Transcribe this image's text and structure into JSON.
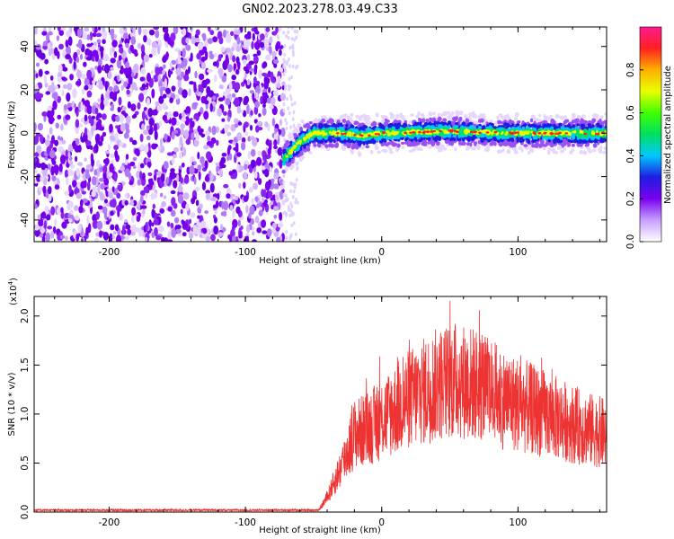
{
  "title": "GN02.2023.278.03.49.C33",
  "colors": {
    "snr_line": "#ee3333",
    "noise_dot": "#7a00ee",
    "frame": "#000000"
  },
  "chart_data": [
    {
      "type": "heatmap",
      "xlabel": "Height of straight line (km)",
      "ylabel": "Frequency (Hz)",
      "xlim": [
        -255,
        165
      ],
      "ylim": [
        -50,
        49
      ],
      "x_ticks": [
        -200,
        -100,
        0,
        100
      ],
      "x_tick_labels": [
        "-200",
        "-100",
        "0",
        "100"
      ],
      "y_ticks": [
        -40,
        -20,
        0,
        20,
        40
      ],
      "y_tick_labels": [
        "-40",
        "-20",
        "0",
        "20",
        "40"
      ],
      "noise_region_end_km": -72,
      "signal_track": [
        {
          "x": -72,
          "f": -12
        },
        {
          "x": -60,
          "f": -4
        },
        {
          "x": -50,
          "f": 0
        },
        {
          "x": -30,
          "f": 0
        },
        {
          "x": -15,
          "f": -1
        },
        {
          "x": 0,
          "f": 0
        },
        {
          "x": 50,
          "f": 1
        },
        {
          "x": 100,
          "f": 0
        },
        {
          "x": 165,
          "f": 0
        }
      ],
      "colorbar": {
        "label": "Normalized spectral amplitude",
        "range": [
          0.0,
          1.0
        ],
        "ticks": [
          0.0,
          0.2,
          0.4,
          0.6,
          0.8
        ],
        "tick_labels": [
          "0.0",
          "0.2",
          "0.4",
          "0.6",
          "0.8"
        ],
        "colors": [
          "#ffffff",
          "#c7a0ff",
          "#7a00ee",
          "#1d1de0",
          "#00c8ff",
          "#00e060",
          "#40ff00",
          "#e8ff00",
          "#ffb000",
          "#ff2020",
          "#ff1a90"
        ]
      }
    },
    {
      "type": "line",
      "xlabel": "Height of straight line (km)",
      "ylabel": "SNR (10 * v/v)",
      "multiplier_label": "(x10",
      "multiplier_exp": "4",
      "multiplier_close": ")",
      "xlim": [
        -255,
        165
      ],
      "ylim": [
        0,
        2.2
      ],
      "x_ticks": [
        -200,
        -100,
        0,
        100
      ],
      "x_tick_labels": [
        "-200",
        "-100",
        "0",
        "100"
      ],
      "y_ticks": [
        0.0,
        0.5,
        1.0,
        1.5,
        2.0
      ],
      "y_tick_labels": [
        "0.0",
        "0.5",
        "1.0",
        "1.5",
        "2.0"
      ],
      "envelope": [
        {
          "x": -255,
          "y": 0.02
        },
        {
          "x": -100,
          "y": 0.02
        },
        {
          "x": -46,
          "y": 0.02
        },
        {
          "x": -40,
          "y": 0.15
        },
        {
          "x": -30,
          "y": 0.45
        },
        {
          "x": -20,
          "y": 0.8
        },
        {
          "x": -10,
          "y": 0.85
        },
        {
          "x": 0,
          "y": 0.95
        },
        {
          "x": 20,
          "y": 1.15
        },
        {
          "x": 40,
          "y": 1.3
        },
        {
          "x": 55,
          "y": 1.35
        },
        {
          "x": 70,
          "y": 1.3
        },
        {
          "x": 90,
          "y": 1.15
        },
        {
          "x": 110,
          "y": 1.05
        },
        {
          "x": 130,
          "y": 0.95
        },
        {
          "x": 150,
          "y": 0.85
        },
        {
          "x": 165,
          "y": 0.8
        }
      ]
    }
  ]
}
